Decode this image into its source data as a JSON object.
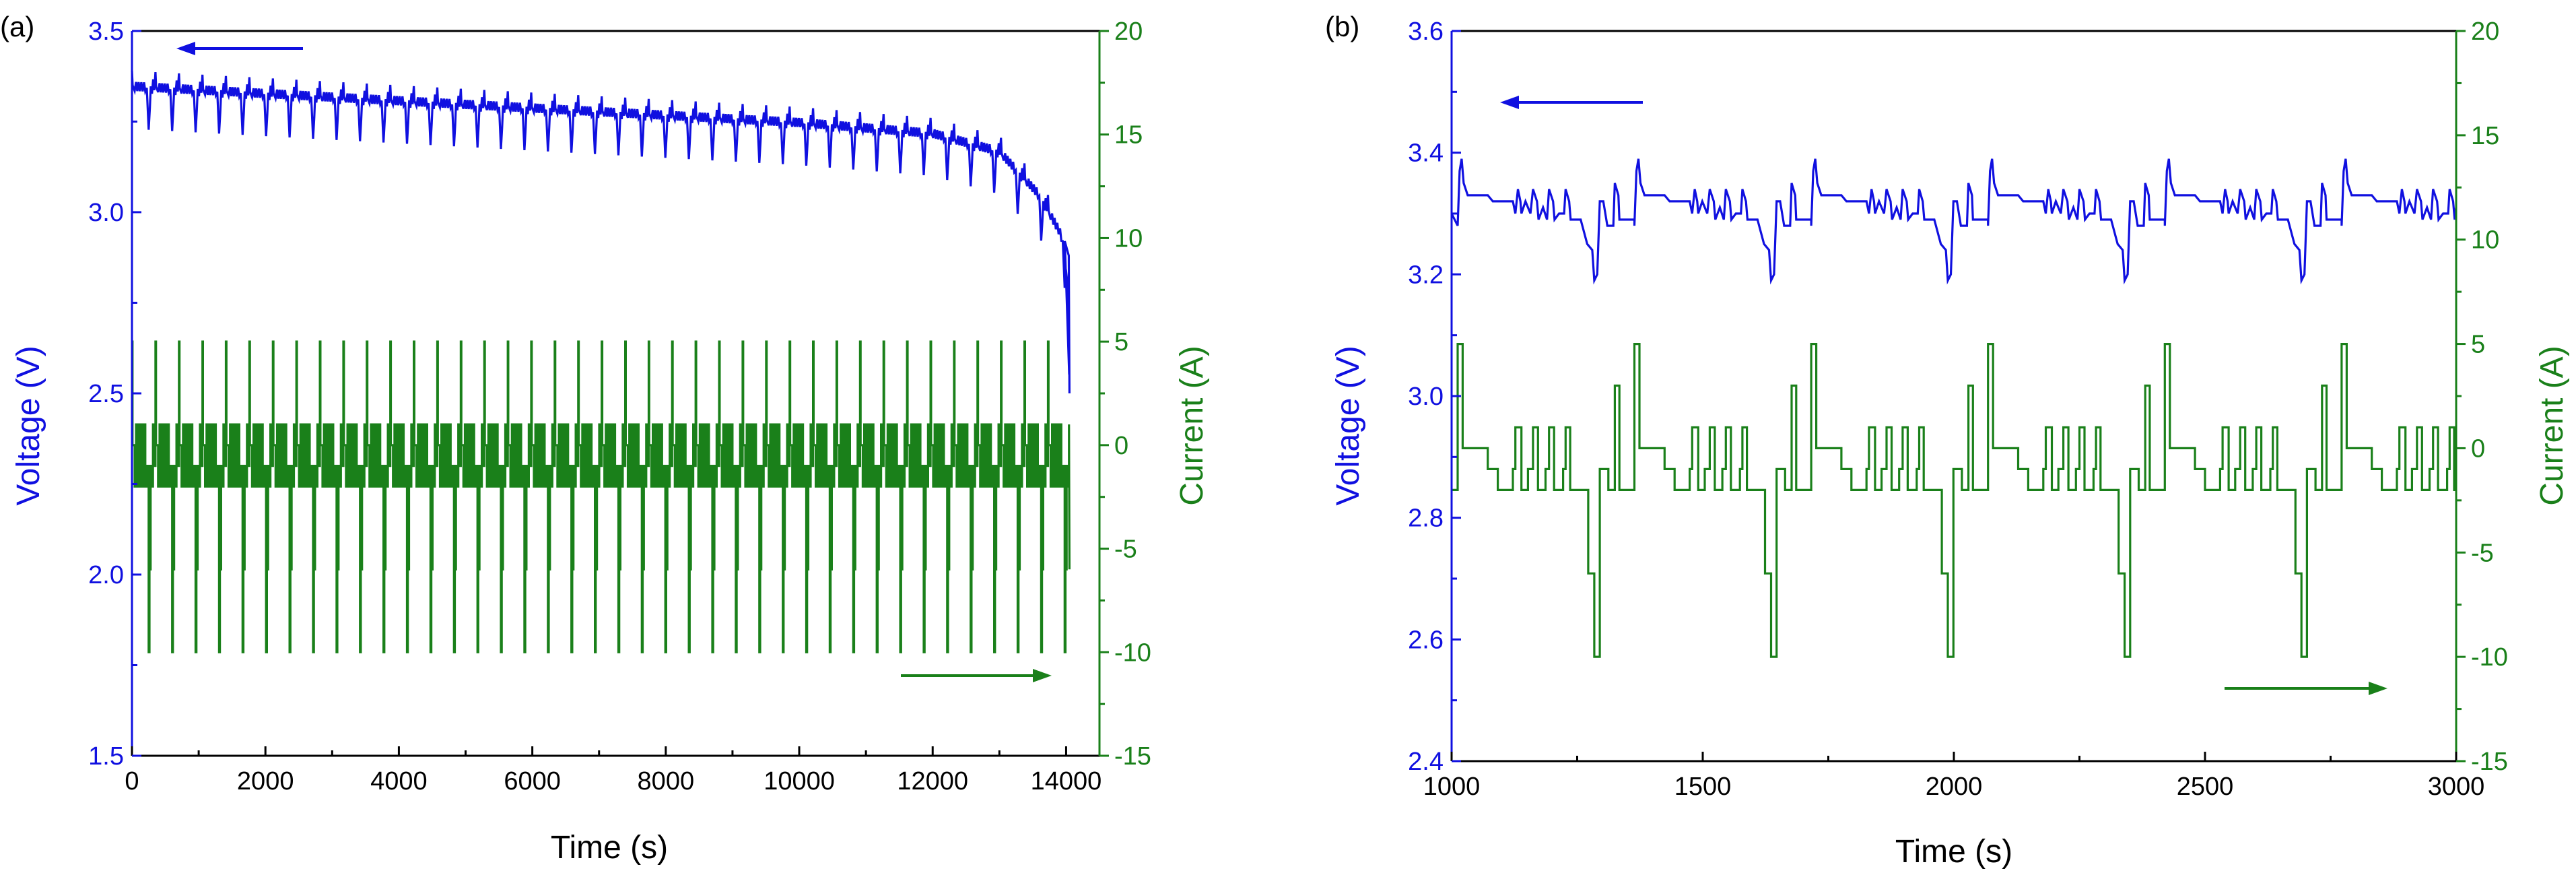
{
  "colors": {
    "voltage": "#1010e0",
    "current": "#1a801a",
    "frame": "#000000"
  },
  "chart_data": [
    {
      "panel": "(a)",
      "type": "line",
      "xlabel": "Time (s)",
      "ylabel_left": "Voltage (V)",
      "ylabel_right": "Current (A)",
      "xlim": [
        0,
        14500
      ],
      "xticks": [
        0,
        2000,
        4000,
        6000,
        8000,
        10000,
        12000,
        14000
      ],
      "ylim_left": [
        1.5,
        3.5
      ],
      "yticks_left": [
        "1.5",
        "2.0",
        "2.5",
        "3.0",
        "3.5"
      ],
      "ylim_right": [
        -15,
        20
      ],
      "yticks_right": [
        -15,
        -10,
        -5,
        0,
        5,
        10,
        15,
        20
      ],
      "voltage_arrow": "points left (voltage read on left axis), top-left",
      "current_arrow": "points right (current read on right axis), bottom-right",
      "series": [
        {
          "name": "Voltage",
          "axis": "left",
          "description": "Repeated drive cycles (~352 s period, 40 cycles); baseline ~3.34 V at start falling to ~3.15 V by 13000 s, then dropping sharply to ~2.5 V at ~14050 s",
          "cycle_period_s": 352,
          "cycles": 40,
          "baseline_points": [
            [
              0,
              3.35
            ],
            [
              2000,
              3.33
            ],
            [
              6000,
              3.29
            ],
            [
              10000,
              3.25
            ],
            [
              12000,
              3.22
            ],
            [
              13000,
              3.17
            ],
            [
              13600,
              3.05
            ],
            [
              13900,
              2.95
            ],
            [
              14000,
              2.9
            ],
            [
              14050,
              2.5
            ]
          ],
          "dip_depth_v": 0.12
        },
        {
          "name": "Current",
          "axis": "right",
          "description": "Same drive profile repeated each cycle: pulses between -10 A and +5 A, mostly oscillating between -2 A and +1 A",
          "levels_a": [
            -10,
            -6,
            -2,
            -1,
            0,
            1,
            2,
            5
          ],
          "range_a": [
            -10,
            5
          ]
        }
      ]
    },
    {
      "panel": "(b)",
      "type": "line",
      "xlabel": "Time (s)",
      "ylabel_left": "Voltage (V)",
      "ylabel_right": "Current (A)",
      "xlim": [
        1000,
        3000
      ],
      "xticks": [
        1000,
        1500,
        2000,
        2500,
        3000
      ],
      "ylim_left": [
        2.4,
        3.6
      ],
      "yticks_left": [
        "2.4",
        "2.6",
        "2.8",
        "3.0",
        "3.2",
        "3.4",
        "3.6"
      ],
      "ylim_right": [
        -15,
        20
      ],
      "yticks_right": [
        -15,
        -10,
        -5,
        0,
        5,
        10,
        15,
        20
      ],
      "cycle_period_s": 352,
      "cycle_starts_s": [
        1012,
        1364,
        1716,
        2068,
        2420,
        2772
      ],
      "current_profile": [
        [
          0,
          5
        ],
        [
          8,
          5
        ],
        [
          10,
          0
        ],
        [
          60,
          -1
        ],
        [
          80,
          -2
        ],
        [
          110,
          -1
        ],
        [
          115,
          1
        ],
        [
          125,
          1
        ],
        [
          127,
          -2
        ],
        [
          140,
          -1
        ],
        [
          150,
          1
        ],
        [
          158,
          1
        ],
        [
          160,
          -2
        ],
        [
          175,
          -1
        ],
        [
          182,
          1
        ],
        [
          190,
          1
        ],
        [
          192,
          -2
        ],
        [
          210,
          -1
        ],
        [
          215,
          1
        ],
        [
          222,
          1
        ],
        [
          224,
          -2
        ],
        [
          245,
          -2
        ],
        [
          260,
          -6
        ],
        [
          270,
          -6
        ],
        [
          272,
          -10
        ],
        [
          280,
          -10
        ],
        [
          283,
          -1
        ],
        [
          290,
          -1
        ],
        [
          300,
          -2
        ],
        [
          310,
          -2
        ],
        [
          313,
          3
        ],
        [
          320,
          3
        ],
        [
          322,
          -2
        ],
        [
          352,
          -2
        ]
      ],
      "voltage_profile": [
        [
          0,
          3.28
        ],
        [
          4,
          3.37
        ],
        [
          8,
          3.39
        ],
        [
          12,
          3.35
        ],
        [
          20,
          3.33
        ],
        [
          60,
          3.33
        ],
        [
          70,
          3.32
        ],
        [
          110,
          3.32
        ],
        [
          115,
          3.3
        ],
        [
          120,
          3.34
        ],
        [
          125,
          3.32
        ],
        [
          127,
          3.3
        ],
        [
          135,
          3.32
        ],
        [
          145,
          3.3
        ],
        [
          150,
          3.34
        ],
        [
          158,
          3.32
        ],
        [
          161,
          3.29
        ],
        [
          170,
          3.31
        ],
        [
          178,
          3.29
        ],
        [
          182,
          3.34
        ],
        [
          190,
          3.32
        ],
        [
          193,
          3.29
        ],
        [
          202,
          3.3
        ],
        [
          212,
          3.3
        ],
        [
          215,
          3.34
        ],
        [
          222,
          3.32
        ],
        [
          225,
          3.29
        ],
        [
          245,
          3.29
        ],
        [
          258,
          3.25
        ],
        [
          268,
          3.24
        ],
        [
          272,
          3.19
        ],
        [
          278,
          3.2
        ],
        [
          283,
          3.32
        ],
        [
          290,
          3.32
        ],
        [
          298,
          3.28
        ],
        [
          310,
          3.28
        ],
        [
          313,
          3.35
        ],
        [
          320,
          3.33
        ],
        [
          322,
          3.29
        ],
        [
          352,
          3.29
        ]
      ],
      "voltage_arrow": "points left (voltage read on left axis), top-left",
      "current_arrow": "points right (current read on right axis), bottom-right"
    }
  ]
}
